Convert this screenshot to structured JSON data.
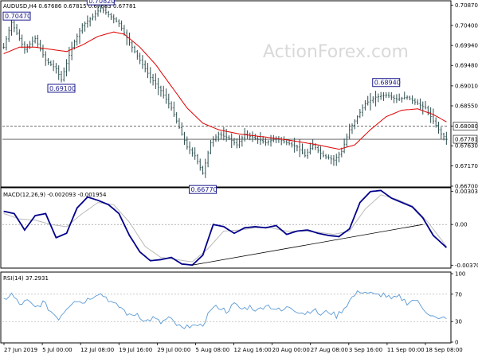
{
  "chart_data": [
    {
      "type": "candlestick",
      "title": "AUDUSD,H4  0.67686  0.67815  0.67683  0.67781",
      "ylim": [
        0.667,
        0.7095
      ],
      "y_ticks": [
        "0.70870",
        "0.70400",
        "0.69940",
        "0.69480",
        "0.69010",
        "0.68550",
        "0.68080",
        "0.67630",
        "0.67170",
        "0.66700"
      ],
      "y_tick_values": [
        0.7087,
        0.704,
        0.6994,
        0.6948,
        0.6901,
        0.6855,
        0.6808,
        0.6763,
        0.6717,
        0.667
      ],
      "x_ticks": [
        "27 Jun 2019",
        "5 Jul 00:00",
        "12 Jul 08:00",
        "19 Jul 16:00",
        "29 Jul 00:00",
        "5 Aug 08:00",
        "12 Aug 16:00",
        "20 Aug 00:00",
        "27 Aug 08:00",
        "3 Sep 16:00",
        "11 Sep 00:00",
        "18 Sep 08:00"
      ],
      "price_key": [
        {
          "i": 0,
          "v": 0.699
        },
        {
          "i": 3,
          "v": 0.7047
        },
        {
          "i": 8,
          "v": 0.6985
        },
        {
          "i": 12,
          "v": 0.701
        },
        {
          "i": 16,
          "v": 0.696
        },
        {
          "i": 20,
          "v": 0.694
        },
        {
          "i": 22,
          "v": 0.6915
        },
        {
          "i": 26,
          "v": 0.699
        },
        {
          "i": 30,
          "v": 0.704
        },
        {
          "i": 34,
          "v": 0.706
        },
        {
          "i": 37,
          "v": 0.708
        },
        {
          "i": 41,
          "v": 0.706
        },
        {
          "i": 44,
          "v": 0.7045
        },
        {
          "i": 48,
          "v": 0.7
        },
        {
          "i": 52,
          "v": 0.696
        },
        {
          "i": 56,
          "v": 0.692
        },
        {
          "i": 60,
          "v": 0.689
        },
        {
          "i": 64,
          "v": 0.685
        },
        {
          "i": 68,
          "v": 0.679
        },
        {
          "i": 70,
          "v": 0.676
        },
        {
          "i": 73,
          "v": 0.674
        },
        {
          "i": 76,
          "v": 0.67
        },
        {
          "i": 79,
          "v": 0.677
        },
        {
          "i": 82,
          "v": 0.679
        },
        {
          "i": 86,
          "v": 0.678
        },
        {
          "i": 89,
          "v": 0.6765
        },
        {
          "i": 92,
          "v": 0.679
        },
        {
          "i": 96,
          "v": 0.678
        },
        {
          "i": 100,
          "v": 0.677
        },
        {
          "i": 104,
          "v": 0.678
        },
        {
          "i": 108,
          "v": 0.677
        },
        {
          "i": 112,
          "v": 0.676
        },
        {
          "i": 115,
          "v": 0.674
        },
        {
          "i": 118,
          "v": 0.6765
        },
        {
          "i": 122,
          "v": 0.674
        },
        {
          "i": 126,
          "v": 0.673
        },
        {
          "i": 129,
          "v": 0.675
        },
        {
          "i": 132,
          "v": 0.68
        },
        {
          "i": 135,
          "v": 0.683
        },
        {
          "i": 138,
          "v": 0.686
        },
        {
          "i": 142,
          "v": 0.6875
        },
        {
          "i": 146,
          "v": 0.688
        },
        {
          "i": 150,
          "v": 0.687
        },
        {
          "i": 154,
          "v": 0.6875
        },
        {
          "i": 158,
          "v": 0.686
        },
        {
          "i": 161,
          "v": 0.685
        },
        {
          "i": 164,
          "v": 0.682
        },
        {
          "i": 167,
          "v": 0.679
        },
        {
          "i": 169,
          "v": 0.6778
        }
      ],
      "ma_key": [
        {
          "i": 0,
          "v": 0.6975
        },
        {
          "i": 6,
          "v": 0.699
        },
        {
          "i": 12,
          "v": 0.699
        },
        {
          "i": 18,
          "v": 0.6985
        },
        {
          "i": 24,
          "v": 0.698
        },
        {
          "i": 30,
          "v": 0.6995
        },
        {
          "i": 36,
          "v": 0.7015
        },
        {
          "i": 42,
          "v": 0.7025
        },
        {
          "i": 46,
          "v": 0.702
        },
        {
          "i": 52,
          "v": 0.699
        },
        {
          "i": 58,
          "v": 0.695
        },
        {
          "i": 64,
          "v": 0.69
        },
        {
          "i": 70,
          "v": 0.685
        },
        {
          "i": 76,
          "v": 0.6815
        },
        {
          "i": 82,
          "v": 0.68
        },
        {
          "i": 90,
          "v": 0.679
        },
        {
          "i": 100,
          "v": 0.6783
        },
        {
          "i": 110,
          "v": 0.6775
        },
        {
          "i": 120,
          "v": 0.6765
        },
        {
          "i": 128,
          "v": 0.6755
        },
        {
          "i": 134,
          "v": 0.6765
        },
        {
          "i": 140,
          "v": 0.68
        },
        {
          "i": 146,
          "v": 0.683
        },
        {
          "i": 152,
          "v": 0.6845
        },
        {
          "i": 158,
          "v": 0.6848
        },
        {
          "i": 164,
          "v": 0.6835
        },
        {
          "i": 169,
          "v": 0.6818
        }
      ],
      "bar_count": 170,
      "horizontal_levels": [
        0.6808,
        0.6778
      ],
      "annotations": [
        {
          "label": "0.70470",
          "bar": 3,
          "value": 0.7047,
          "side": "above"
        },
        {
          "label": "0.70820",
          "bar": 37,
          "value": 0.7082,
          "side": "above"
        },
        {
          "label": "0.69100",
          "bar": 22,
          "value": 0.691,
          "side": "below"
        },
        {
          "label": "0.66770",
          "bar": 76,
          "value": 0.6677,
          "side": "below"
        },
        {
          "label": "0.68940",
          "bar": 146,
          "value": 0.6894,
          "side": "above"
        }
      ],
      "price_tags": [
        {
          "label": "0.68080",
          "value": 0.6808,
          "bg": "#ffffff",
          "fg": "#000000"
        },
        {
          "label": "0.67781",
          "value": 0.6778,
          "bg": "#ffffff",
          "fg": "#000000"
        }
      ],
      "colors": {
        "price": "#2f4f4f",
        "ma": "#e00000",
        "level": "#555555"
      },
      "watermark": "ActionForex.com"
    },
    {
      "type": "line",
      "title": "MACD(12,26,9) -0.002093 -0.001954",
      "ylim": [
        -0.0039,
        0.0032
      ],
      "y_ticks": [
        "0.003031",
        "0.00",
        "-0.003706"
      ],
      "y_tick_values": [
        0.003031,
        0.0,
        -0.003706
      ],
      "series": [
        {
          "name": "MACD",
          "color": "#00008b",
          "key": [
            {
              "i": 0,
              "v": 0.0012
            },
            {
              "i": 4,
              "v": 0.001
            },
            {
              "i": 8,
              "v": -0.0005
            },
            {
              "i": 12,
              "v": 0.0008
            },
            {
              "i": 16,
              "v": 0.001
            },
            {
              "i": 20,
              "v": -0.0012
            },
            {
              "i": 24,
              "v": -0.0008
            },
            {
              "i": 28,
              "v": 0.0015
            },
            {
              "i": 32,
              "v": 0.0025
            },
            {
              "i": 36,
              "v": 0.0022
            },
            {
              "i": 40,
              "v": 0.0018
            },
            {
              "i": 44,
              "v": 0.001
            },
            {
              "i": 48,
              "v": -0.001
            },
            {
              "i": 52,
              "v": -0.0025
            },
            {
              "i": 56,
              "v": -0.0033
            },
            {
              "i": 60,
              "v": -0.0032
            },
            {
              "i": 64,
              "v": -0.003
            },
            {
              "i": 68,
              "v": -0.0036
            },
            {
              "i": 72,
              "v": -0.0037
            },
            {
              "i": 76,
              "v": -0.0028
            },
            {
              "i": 80,
              "v": 0.0
            },
            {
              "i": 84,
              "v": -0.0002
            },
            {
              "i": 88,
              "v": -0.0008
            },
            {
              "i": 92,
              "v": -0.0003
            },
            {
              "i": 96,
              "v": -0.0002
            },
            {
              "i": 100,
              "v": -0.0003
            },
            {
              "i": 104,
              "v": -0.0001
            },
            {
              "i": 108,
              "v": -0.0009
            },
            {
              "i": 112,
              "v": -0.0006
            },
            {
              "i": 116,
              "v": -0.0005
            },
            {
              "i": 120,
              "v": -0.0008
            },
            {
              "i": 124,
              "v": -0.001
            },
            {
              "i": 128,
              "v": -0.0011
            },
            {
              "i": 132,
              "v": -0.0004
            },
            {
              "i": 136,
              "v": 0.002
            },
            {
              "i": 140,
              "v": 0.003
            },
            {
              "i": 144,
              "v": 0.0031
            },
            {
              "i": 148,
              "v": 0.0024
            },
            {
              "i": 152,
              "v": 0.002
            },
            {
              "i": 156,
              "v": 0.0016
            },
            {
              "i": 160,
              "v": 0.0006
            },
            {
              "i": 164,
              "v": -0.001
            },
            {
              "i": 169,
              "v": -0.0021
            }
          ]
        },
        {
          "name": "Signal",
          "color": "#bbbbbb",
          "key": [
            {
              "i": 0,
              "v": 0.001
            },
            {
              "i": 6,
              "v": 0.0005
            },
            {
              "i": 12,
              "v": 0.0004
            },
            {
              "i": 18,
              "v": 0.0
            },
            {
              "i": 24,
              "v": -0.0002
            },
            {
              "i": 30,
              "v": 0.001
            },
            {
              "i": 36,
              "v": 0.002
            },
            {
              "i": 42,
              "v": 0.0018
            },
            {
              "i": 48,
              "v": 0.0002
            },
            {
              "i": 54,
              "v": -0.002
            },
            {
              "i": 60,
              "v": -0.003
            },
            {
              "i": 66,
              "v": -0.0032
            },
            {
              "i": 72,
              "v": -0.0034
            },
            {
              "i": 78,
              "v": -0.0022
            },
            {
              "i": 84,
              "v": -0.0006
            },
            {
              "i": 90,
              "v": -0.0005
            },
            {
              "i": 96,
              "v": -0.0003
            },
            {
              "i": 102,
              "v": -0.0003
            },
            {
              "i": 108,
              "v": -0.0006
            },
            {
              "i": 114,
              "v": -0.0006
            },
            {
              "i": 120,
              "v": -0.0007
            },
            {
              "i": 126,
              "v": -0.0009
            },
            {
              "i": 132,
              "v": -0.0006
            },
            {
              "i": 138,
              "v": 0.0014
            },
            {
              "i": 144,
              "v": 0.0027
            },
            {
              "i": 150,
              "v": 0.0023
            },
            {
              "i": 156,
              "v": 0.0017
            },
            {
              "i": 162,
              "v": 0.0002
            },
            {
              "i": 169,
              "v": -0.002
            }
          ]
        }
      ],
      "trendline": {
        "from": {
          "i": 72,
          "v": -0.0037
        },
        "to": {
          "i": 160,
          "v": 0.0
        }
      }
    },
    {
      "type": "line",
      "title": "RSI(14) 37.2931",
      "ylim": [
        0,
        100
      ],
      "y_ticks": [
        "100",
        "70",
        "30",
        "0"
      ],
      "y_tick_values": [
        100,
        70,
        30,
        0
      ],
      "levels": [
        70,
        30
      ],
      "series": [
        {
          "name": "RSI",
          "color": "#5b9bd5",
          "key": [
            {
              "i": 0,
              "v": 62
            },
            {
              "i": 3,
              "v": 70
            },
            {
              "i": 6,
              "v": 55
            },
            {
              "i": 9,
              "v": 60
            },
            {
              "i": 12,
              "v": 50
            },
            {
              "i": 15,
              "v": 58
            },
            {
              "i": 18,
              "v": 45
            },
            {
              "i": 21,
              "v": 35
            },
            {
              "i": 24,
              "v": 50
            },
            {
              "i": 27,
              "v": 62
            },
            {
              "i": 30,
              "v": 58
            },
            {
              "i": 33,
              "v": 65
            },
            {
              "i": 36,
              "v": 72
            },
            {
              "i": 39,
              "v": 66
            },
            {
              "i": 42,
              "v": 55
            },
            {
              "i": 45,
              "v": 50
            },
            {
              "i": 48,
              "v": 38
            },
            {
              "i": 51,
              "v": 42
            },
            {
              "i": 54,
              "v": 30
            },
            {
              "i": 57,
              "v": 35
            },
            {
              "i": 60,
              "v": 28
            },
            {
              "i": 63,
              "v": 35
            },
            {
              "i": 66,
              "v": 25
            },
            {
              "i": 69,
              "v": 18
            },
            {
              "i": 72,
              "v": 28
            },
            {
              "i": 74,
              "v": 20
            },
            {
              "i": 76,
              "v": 25
            },
            {
              "i": 79,
              "v": 48
            },
            {
              "i": 82,
              "v": 52
            },
            {
              "i": 85,
              "v": 45
            },
            {
              "i": 88,
              "v": 55
            },
            {
              "i": 91,
              "v": 48
            },
            {
              "i": 94,
              "v": 52
            },
            {
              "i": 97,
              "v": 46
            },
            {
              "i": 100,
              "v": 55
            },
            {
              "i": 103,
              "v": 50
            },
            {
              "i": 106,
              "v": 45
            },
            {
              "i": 109,
              "v": 52
            },
            {
              "i": 112,
              "v": 46
            },
            {
              "i": 115,
              "v": 42
            },
            {
              "i": 118,
              "v": 48
            },
            {
              "i": 121,
              "v": 40
            },
            {
              "i": 124,
              "v": 45
            },
            {
              "i": 127,
              "v": 38
            },
            {
              "i": 130,
              "v": 50
            },
            {
              "i": 133,
              "v": 65
            },
            {
              "i": 136,
              "v": 75
            },
            {
              "i": 139,
              "v": 72
            },
            {
              "i": 142,
              "v": 68
            },
            {
              "i": 145,
              "v": 70
            },
            {
              "i": 148,
              "v": 62
            },
            {
              "i": 151,
              "v": 66
            },
            {
              "i": 154,
              "v": 58
            },
            {
              "i": 157,
              "v": 62
            },
            {
              "i": 160,
              "v": 50
            },
            {
              "i": 163,
              "v": 40
            },
            {
              "i": 166,
              "v": 32
            },
            {
              "i": 169,
              "v": 37
            }
          ]
        }
      ]
    }
  ]
}
